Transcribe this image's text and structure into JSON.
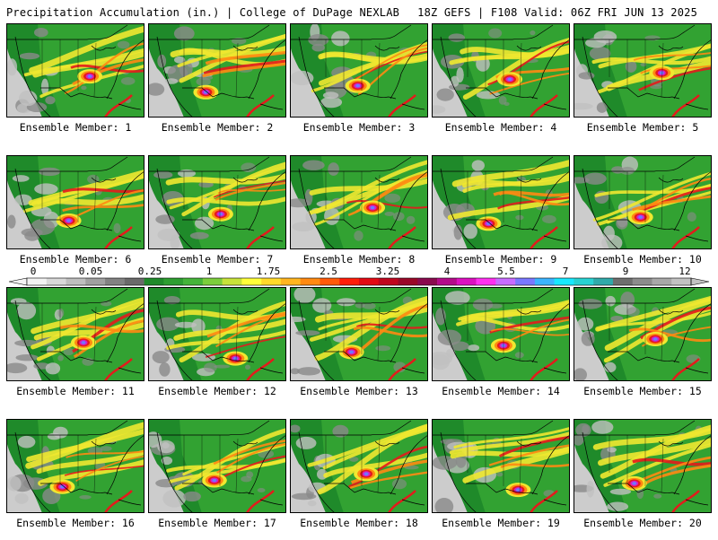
{
  "header": {
    "title_left": "Precipitation Accumulation (in.) | College of DuPage NEXLAB",
    "title_right": "18Z GEFS | F108 Valid: 06Z FRI JUN 13 2025"
  },
  "panels": [
    {
      "label": "Ensemble Member: 1"
    },
    {
      "label": "Ensemble Member: 2"
    },
    {
      "label": "Ensemble Member: 3"
    },
    {
      "label": "Ensemble Member: 4"
    },
    {
      "label": "Ensemble Member: 5"
    },
    {
      "label": "Ensemble Member: 6"
    },
    {
      "label": "Ensemble Member: 7"
    },
    {
      "label": "Ensemble Member: 8"
    },
    {
      "label": "Ensemble Member: 9"
    },
    {
      "label": "Ensemble Member: 10"
    },
    {
      "label": "Ensemble Member: 11"
    },
    {
      "label": "Ensemble Member: 12"
    },
    {
      "label": "Ensemble Member: 13"
    },
    {
      "label": "Ensemble Member: 14"
    },
    {
      "label": "Ensemble Member: 15"
    },
    {
      "label": "Ensemble Member: 16"
    },
    {
      "label": "Ensemble Member: 17"
    },
    {
      "label": "Ensemble Member: 18"
    },
    {
      "label": "Ensemble Member: 19"
    },
    {
      "label": "Ensemble Member: 20"
    }
  ],
  "colorbar": {
    "labels": [
      "0",
      "0.05",
      "0.25",
      "1",
      "1.75",
      "2.5",
      "3.25",
      "4",
      "5.5",
      "7",
      "9",
      "12"
    ],
    "colors": [
      "#f2f2f2",
      "#d8d8d8",
      "#bebebe",
      "#a0a0a0",
      "#828282",
      "#6a6a6a",
      "#1f8a2a",
      "#2e9e31",
      "#45b43a",
      "#7ccd3c",
      "#c7e23a",
      "#ffff3a",
      "#ffd92a",
      "#ffb51f",
      "#ff8a12",
      "#ff5a0a",
      "#ff1e0a",
      "#e30a14",
      "#c0061e",
      "#9a0828",
      "#8a0a4e",
      "#b40a8a",
      "#dc10c0",
      "#ff30f0",
      "#c86cff",
      "#7a78ff",
      "#3cb4ff",
      "#18e8ff",
      "#28d2d2",
      "#30aaaa",
      "#6e6e6e",
      "#8c8c8c",
      "#a8a8a8",
      "#c2c2c2"
    ]
  },
  "map_palette": {
    "land_background": "#d9d9d9",
    "light_gray": "#c0c0c0",
    "dark_gray": "#8a8a8a",
    "dark_green": "#1f8a2a",
    "green": "#3aaa35",
    "yellow": "#f0e830",
    "orange": "#ff8a12",
    "red": "#e41a1c",
    "magenta": "#d21ec8",
    "blue": "#6e78ff",
    "border": "#000000"
  }
}
